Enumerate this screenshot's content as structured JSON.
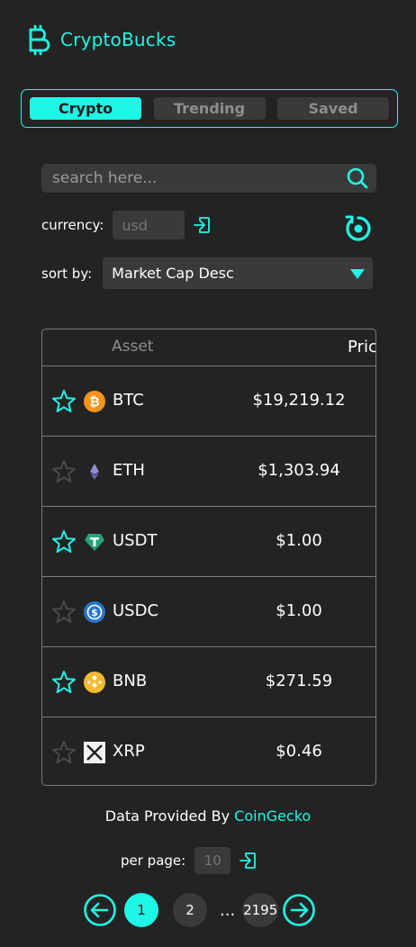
{
  "app": {
    "title": "CryptoBucks"
  },
  "tabs": [
    {
      "label": "Crypto",
      "active": true
    },
    {
      "label": "Trending",
      "active": false
    },
    {
      "label": "Saved",
      "active": false
    }
  ],
  "search": {
    "placeholder": "search here..."
  },
  "currency": {
    "label": "currency:",
    "placeholder": "usd"
  },
  "sort": {
    "label": "sort by:",
    "value": "Market Cap Desc"
  },
  "table": {
    "headers": {
      "asset": "Asset",
      "price": "Price"
    },
    "rows": [
      {
        "symbol": "BTC",
        "price": "$19,219.12",
        "saved": true,
        "icon": "btc-icon"
      },
      {
        "symbol": "ETH",
        "price": "$1,303.94",
        "saved": false,
        "icon": "eth-icon"
      },
      {
        "symbol": "USDT",
        "price": "$1.00",
        "saved": true,
        "icon": "usdt-icon"
      },
      {
        "symbol": "USDC",
        "price": "$1.00",
        "saved": false,
        "icon": "usdc-icon"
      },
      {
        "symbol": "BNB",
        "price": "$271.59",
        "saved": true,
        "icon": "bnb-icon"
      },
      {
        "symbol": "XRP",
        "price": "$0.46",
        "saved": false,
        "icon": "xrp-icon"
      }
    ]
  },
  "footer": {
    "provided_by": "Data Provided By",
    "provider": "CoinGecko"
  },
  "per_page": {
    "label": "per page:",
    "placeholder": "10"
  },
  "pagination": {
    "pages": [
      "1",
      "2"
    ],
    "ellipsis": "...",
    "last": "2195",
    "current": "1"
  },
  "colors": {
    "accent": "#1ff7e6",
    "background": "#232323",
    "surface": "#3a3a3a"
  }
}
